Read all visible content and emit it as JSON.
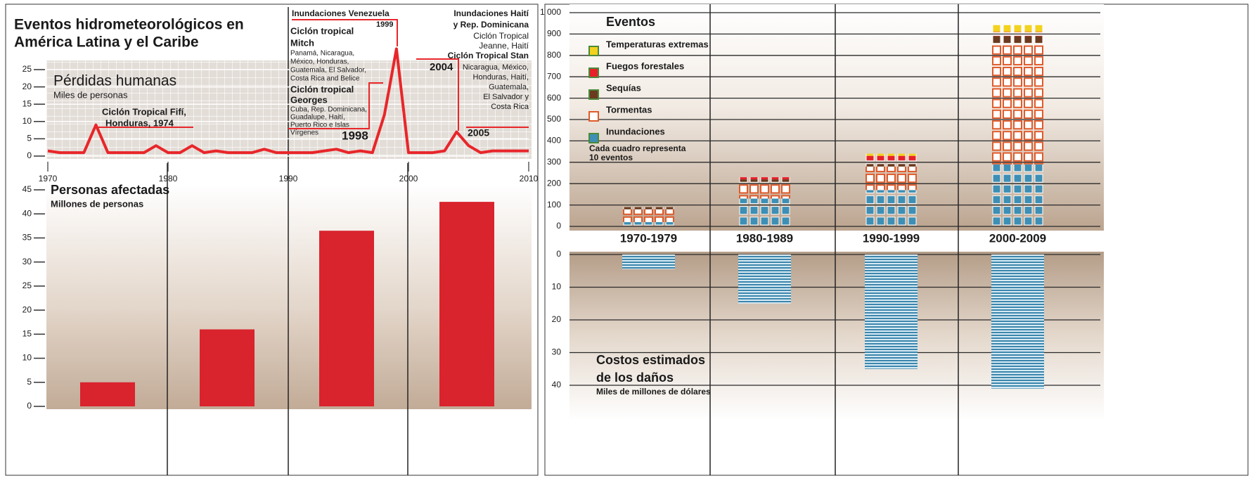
{
  "title": [
    "Eventos hidrometeorológicos en",
    "América Latina y el Caribe"
  ],
  "chart_data": [
    {
      "type": "line",
      "title": "Pérdidas humanas",
      "subtitle": "Miles de personas",
      "x": [
        1970,
        1971,
        1972,
        1973,
        1974,
        1975,
        1976,
        1977,
        1978,
        1979,
        1980,
        1981,
        1982,
        1983,
        1984,
        1985,
        1986,
        1987,
        1988,
        1989,
        1990,
        1991,
        1992,
        1993,
        1994,
        1995,
        1996,
        1997,
        1998,
        1999,
        2000,
        2001,
        2002,
        2003,
        2004,
        2005,
        2006,
        2007,
        2008,
        2009,
        2010
      ],
      "values": [
        1.5,
        1,
        1,
        1,
        9,
        1,
        1,
        1,
        1,
        3,
        1,
        1,
        3,
        1,
        1.5,
        1,
        1,
        1,
        2,
        1,
        1,
        1,
        1,
        1.5,
        2,
        1,
        1.5,
        1,
        12,
        31,
        1,
        1,
        1,
        1.5,
        7,
        3,
        1,
        1.5,
        1.5,
        1.5,
        1.5
      ],
      "color": "#e8262a",
      "xlim": [
        1970,
        2010
      ],
      "xticks": [
        1970,
        1980,
        1990,
        2000,
        2010
      ],
      "ylim": [
        0,
        25
      ],
      "yticks": [
        0,
        5,
        10,
        15,
        20,
        25
      ],
      "grid": true,
      "annotations": [
        "Ciclón Tropical Fifí,",
        "Honduras, 1974",
        "Inundaciones Venezuela",
        "1999",
        "Ciclón tropical",
        "Mitch",
        "Panamá, Nicaragua,",
        "México, Honduras,",
        "Guatemala, El Salvador,",
        "Costa Rica and Belice",
        "Ciclón tropical",
        "Georges",
        "Cuba, Rep. Dominicana,",
        "Guadalupe, Haití,",
        "Puerto Rico e Islas",
        "Vírgenes",
        "1998",
        "Inundaciones Haití",
        "y Rep. Dominicana",
        "Ciclón Tropical",
        "Jeanne, Haití",
        "Ciclón Tropical Stan",
        "2004",
        "Nicaragua, México,",
        "Honduras, Haití,",
        "Guatemala,",
        "El Salvador y",
        "Costa Rica",
        "2005"
      ]
    },
    {
      "type": "bar",
      "title": "Personas afectadas",
      "subtitle": "Millones de personas",
      "categories": [
        null,
        null,
        null,
        null
      ],
      "values": [
        5,
        16,
        36.5,
        42.5
      ],
      "color": "#d9232d",
      "ylim": [
        0,
        45
      ],
      "yticks": [
        0,
        5,
        10,
        15,
        20,
        25,
        30,
        35,
        40,
        45
      ]
    },
    {
      "type": "stacked",
      "legend_title": "Eventos",
      "note": [
        "Cada cuadro representa",
        "10 eventos"
      ],
      "categories": [
        "1970-1979",
        "1980-1989",
        "1990-1999",
        "2000-2009"
      ],
      "series": [
        {
          "name": "Inundaciones",
          "color": "#3d8fb5",
          "values": [
            20,
            130,
            170,
            290
          ]
        },
        {
          "name": "Tormentas",
          "color": "#e05a2a",
          "fill": "#ffffff",
          "values": [
            60,
            70,
            110,
            560
          ]
        },
        {
          "name": "Sequías",
          "color": "#6b3a1f",
          "values": [
            10,
            20,
            20,
            40
          ]
        },
        {
          "name": "Fuegos forestales",
          "color": "#e8202a",
          "values": [
            0,
            10,
            30,
            20
          ]
        },
        {
          "name": "Temperaturas extremas",
          "color": "#f2d21e",
          "values": [
            0,
            0,
            10,
            40
          ]
        }
      ],
      "ylim": [
        0,
        1000
      ],
      "yticks": [
        0,
        100,
        200,
        300,
        400,
        500,
        600,
        700,
        800,
        900,
        {
          "value": 1000,
          "label": "1 000"
        }
      ]
    },
    {
      "type": "bar",
      "title": [
        "Costos estimados",
        "de los daños"
      ],
      "subtitle": "Miles de millones de dólares",
      "categories": [
        null,
        null,
        null,
        null
      ],
      "values": [
        4.5,
        15,
        35,
        41
      ],
      "color": "#3b86ad",
      "ylim": [
        0,
        40
      ],
      "yticks": [
        0,
        10,
        20,
        30,
        40
      ],
      "inverted": true
    }
  ]
}
